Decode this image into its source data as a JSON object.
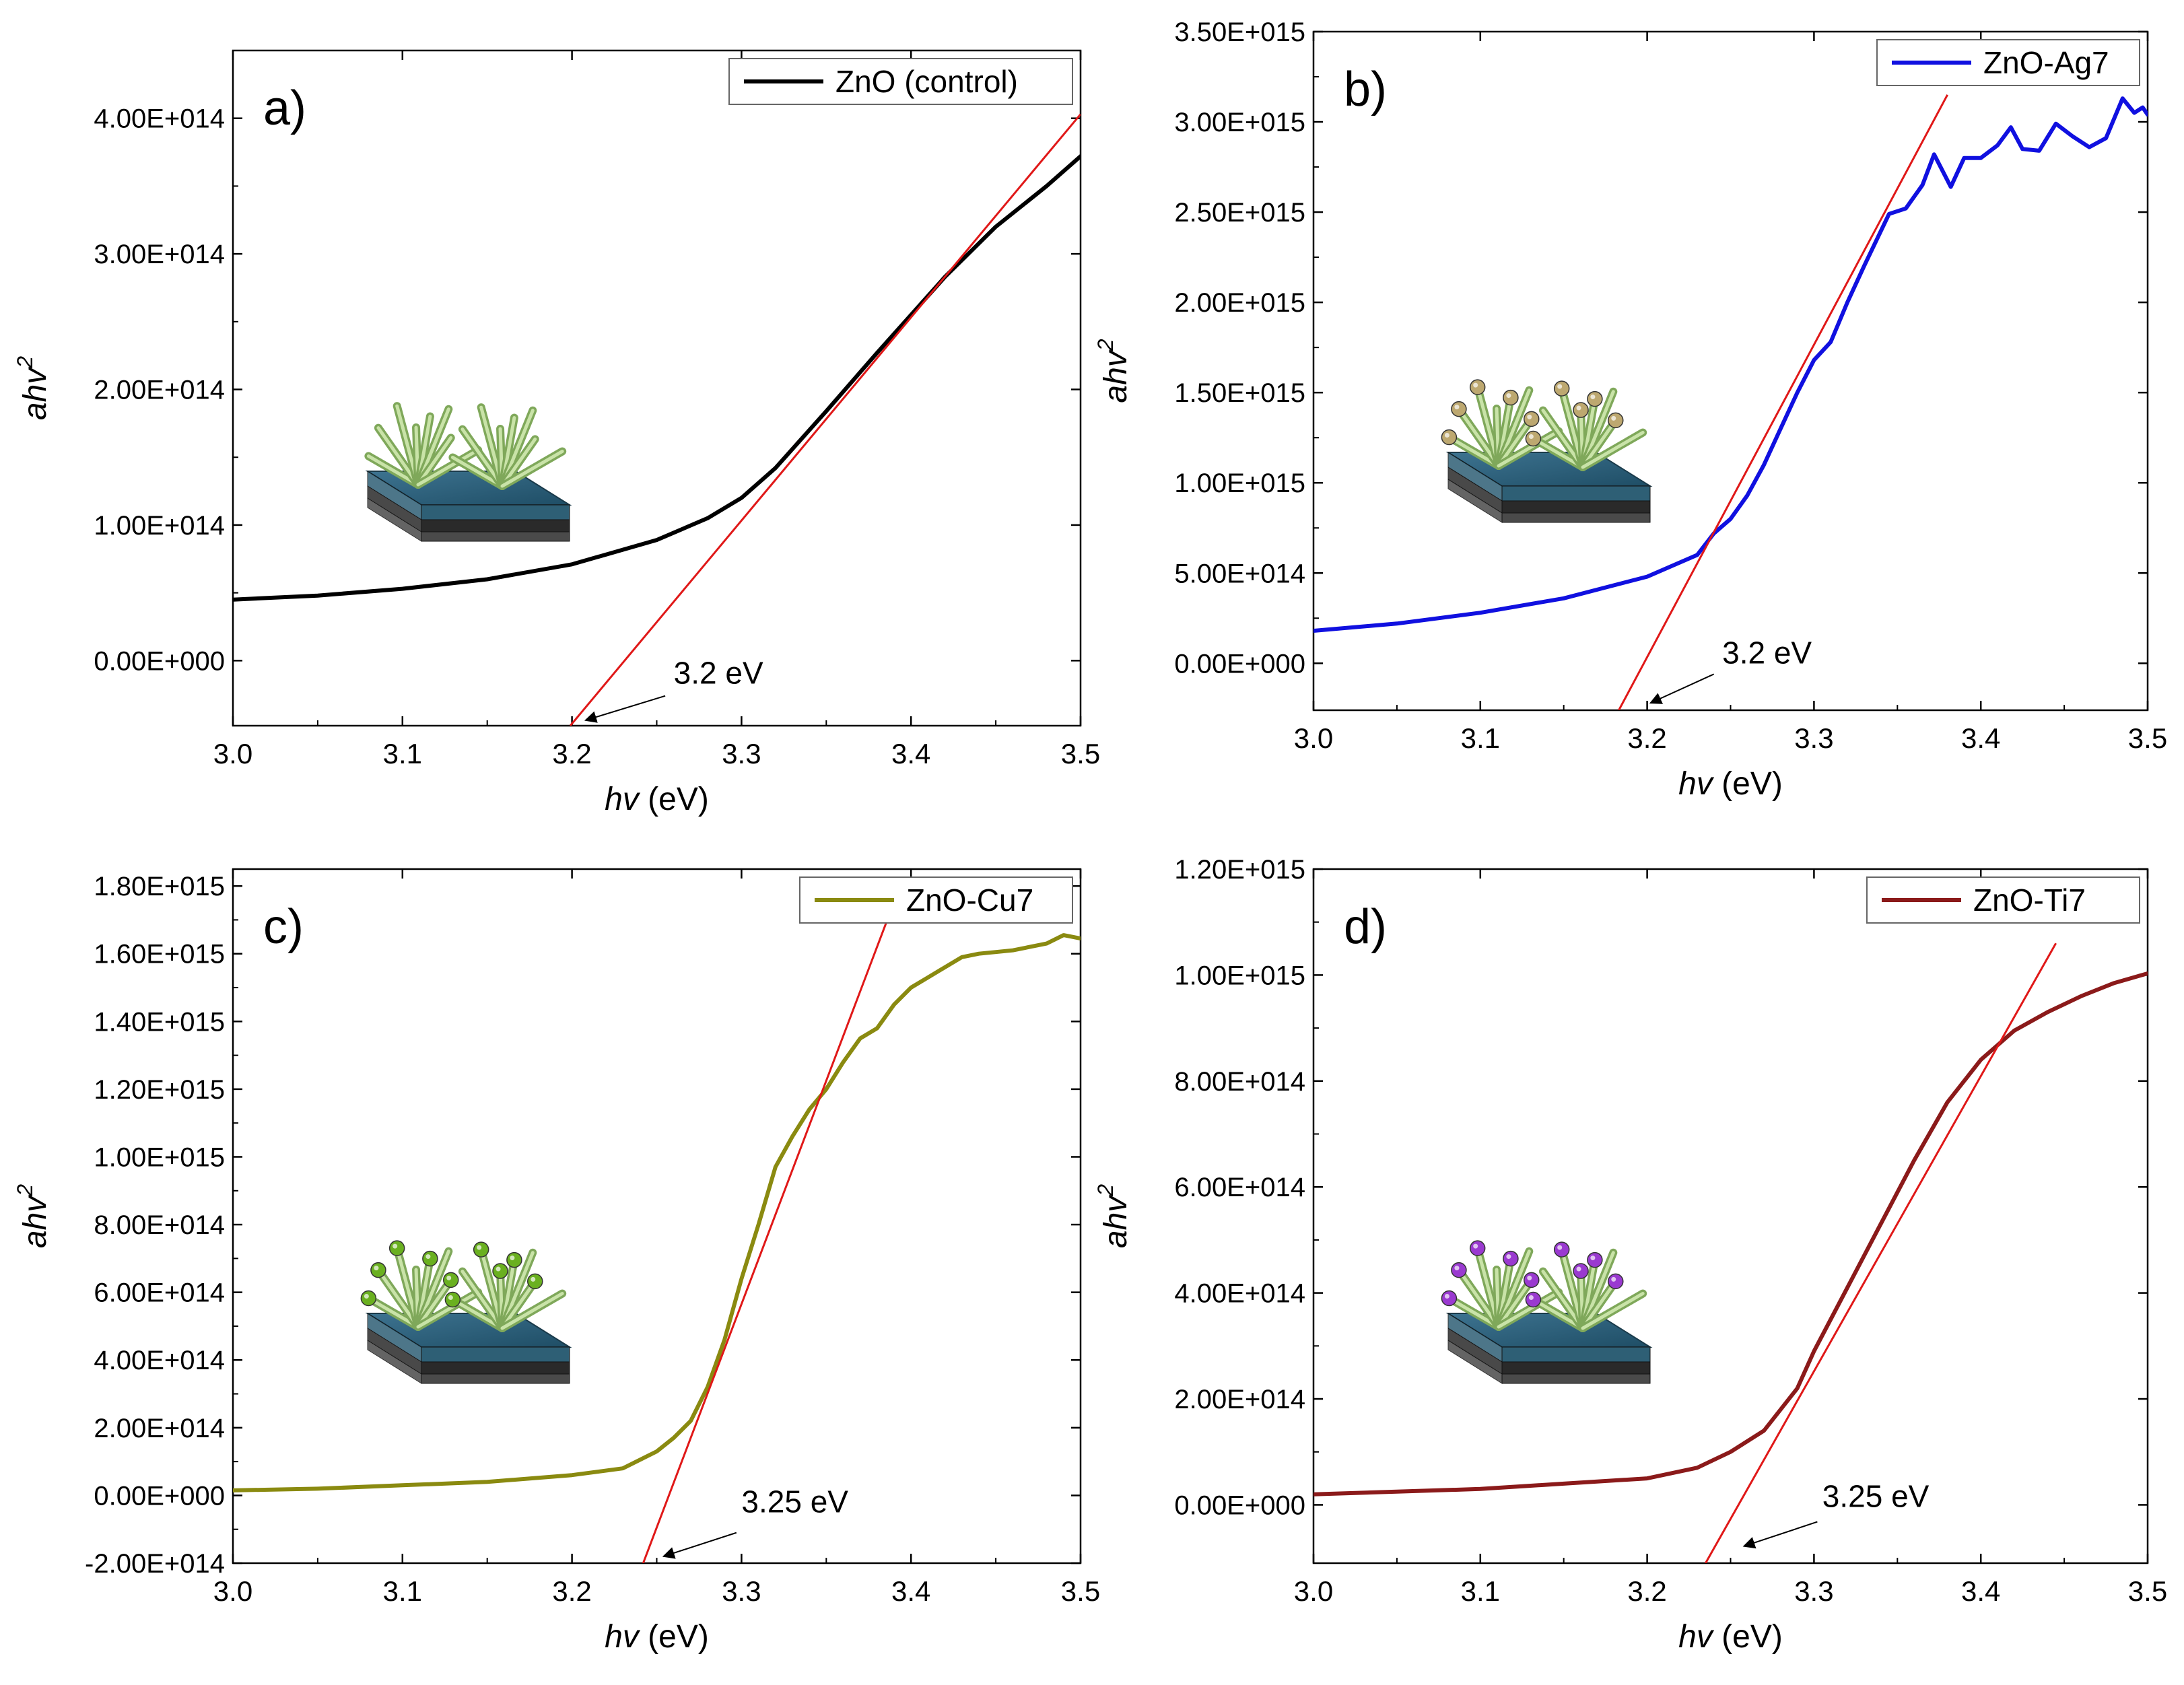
{
  "figure": {
    "description": "Tauc plots of ZnO variants"
  },
  "chart_data": [
    {
      "type": "line",
      "panel_label": "a)",
      "legend": "ZnO (control)",
      "color": "#000000",
      "xlabel_italic": "hv",
      "xlabel_unit": " (eV)",
      "ylabel_base": "ahv",
      "ylabel_sup": "2",
      "xlim": [
        3.0,
        3.5
      ],
      "ylim": [
        -48000000000000.0,
        450000000000000.0
      ],
      "xticks": [
        3.0,
        3.1,
        3.2,
        3.3,
        3.4,
        3.5
      ],
      "xtick_labels": [
        "3.0",
        "3.1",
        "3.2",
        "3.3",
        "3.4",
        "3.5"
      ],
      "yticks": [
        0,
        100000000000000.0,
        200000000000000.0,
        300000000000000.0,
        400000000000000.0
      ],
      "ytick_labels": [
        "0.00E+000",
        "1.00E+014",
        "2.00E+014",
        "3.00E+014",
        "4.00E+014"
      ],
      "x": [
        3.0,
        3.05,
        3.1,
        3.15,
        3.2,
        3.25,
        3.28,
        3.3,
        3.32,
        3.35,
        3.38,
        3.4,
        3.42,
        3.45,
        3.48,
        3.5
      ],
      "y": [
        45000000000000.0,
        48000000000000.0,
        53000000000000.0,
        60000000000000.0,
        71000000000000.0,
        89000000000000.0,
        105000000000000.0,
        120000000000000.0,
        142000000000000.0,
        184000000000000.0,
        227000000000000.0,
        255000000000000.0,
        283000000000000.0,
        320000000000000.0,
        350000000000000.0,
        372000000000000.0
      ],
      "fit": [
        [
          3.199,
          -48000000000000.0
        ],
        [
          3.5,
          403000000000000.0
        ]
      ],
      "bandgap_label": "3.2 eV",
      "bandgap_value": 3.2,
      "annotation_pos": [
        3.26,
        -17000000000000.0
      ],
      "arrow_from": [
        3.255,
        -26000000000000.0
      ],
      "arrow_to": [
        3.208,
        -44000000000000.0
      ],
      "inset_particles": ""
    },
    {
      "type": "line",
      "panel_label": "b)",
      "legend": "ZnO-Ag7",
      "color": "#1010e0",
      "xlabel_italic": "hv",
      "xlabel_unit": " (eV)",
      "ylabel_base": "ahv",
      "ylabel_sup": "2",
      "xlim": [
        3.0,
        3.5
      ],
      "ylim": [
        -260000000000000.0,
        3500000000000000.0
      ],
      "xticks": [
        3.0,
        3.1,
        3.2,
        3.3,
        3.4,
        3.5
      ],
      "xtick_labels": [
        "3.0",
        "3.1",
        "3.2",
        "3.3",
        "3.4",
        "3.5"
      ],
      "yticks": [
        0,
        500000000000000.0,
        1000000000000000.0,
        1500000000000000.0,
        2000000000000000.0,
        2500000000000000.0,
        3000000000000000.0,
        3500000000000000.0
      ],
      "ytick_labels": [
        "0.00E+000",
        "5.00E+014",
        "1.00E+015",
        "1.50E+015",
        "2.00E+015",
        "2.50E+015",
        "3.00E+015",
        "3.50E+015"
      ],
      "x": [
        3.0,
        3.05,
        3.1,
        3.15,
        3.2,
        3.23,
        3.24,
        3.25,
        3.26,
        3.27,
        3.28,
        3.29,
        3.3,
        3.31,
        3.32,
        3.33,
        3.345,
        3.355,
        3.365,
        3.372,
        3.382,
        3.39,
        3.4,
        3.41,
        3.418,
        3.425,
        3.435,
        3.445,
        3.455,
        3.465,
        3.475,
        3.485,
        3.492,
        3.497,
        3.5
      ],
      "y": [
        180000000000000.0,
        220000000000000.0,
        280000000000000.0,
        360000000000000.0,
        480000000000000.0,
        600000000000000.0,
        720000000000000.0,
        800000000000000.0,
        930000000000000.0,
        1100000000000000.0,
        1300000000000000.0,
        1500000000000000.0,
        1680000000000000.0,
        1780000000000000.0,
        2000000000000000.0,
        2200000000000000.0,
        2490000000000000.0,
        2520000000000000.0,
        2650000000000000.0,
        2820000000000000.0,
        2640000000000000.0,
        2800000000000000.0,
        2800000000000000.0,
        2870000000000000.0,
        2970000000000000.0,
        2850000000000000.0,
        2840000000000000.0,
        2990000000000000.0,
        2920000000000000.0,
        2860000000000000.0,
        2910000000000000.0,
        3130000000000000.0,
        3050000000000000.0,
        3080000000000000.0,
        3040000000000000.0
      ],
      "fit": [
        [
          3.183,
          -260000000000000.0
        ],
        [
          3.38,
          3150000000000000.0
        ]
      ],
      "bandgap_label": "3.2 eV",
      "bandgap_value": 3.2,
      "annotation_pos": [
        3.245,
        0.0
      ],
      "arrow_from": [
        3.24,
        -60000000000000.0
      ],
      "arrow_to": [
        3.202,
        -220000000000000.0
      ],
      "inset_particles": "#bda870"
    },
    {
      "type": "line",
      "panel_label": "c)",
      "legend": "ZnO-Cu7",
      "color": "#8a8a10",
      "xlabel_italic": "hv",
      "xlabel_unit": " (eV)",
      "ylabel_base": "ahv",
      "ylabel_sup": "2",
      "xlim": [
        3.0,
        3.5
      ],
      "ylim": [
        -200000000000000.0,
        1850000000000000.0
      ],
      "xticks": [
        3.0,
        3.1,
        3.2,
        3.3,
        3.4,
        3.5
      ],
      "xtick_labels": [
        "3.0",
        "3.1",
        "3.2",
        "3.3",
        "3.4",
        "3.5"
      ],
      "yticks": [
        -200000000000000.0,
        0,
        200000000000000.0,
        400000000000000.0,
        600000000000000.0,
        800000000000000.0,
        1000000000000000.0,
        1200000000000000.0,
        1400000000000000.0,
        1600000000000000.0,
        1800000000000000.0
      ],
      "ytick_labels": [
        "-2.00E+014",
        "0.00E+000",
        "2.00E+014",
        "4.00E+014",
        "6.00E+014",
        "8.00E+014",
        "1.00E+015",
        "1.20E+015",
        "1.40E+015",
        "1.60E+015",
        "1.80E+015"
      ],
      "x": [
        3.0,
        3.05,
        3.1,
        3.15,
        3.2,
        3.23,
        3.25,
        3.26,
        3.27,
        3.28,
        3.29,
        3.3,
        3.31,
        3.32,
        3.33,
        3.34,
        3.35,
        3.36,
        3.37,
        3.38,
        3.39,
        3.4,
        3.41,
        3.42,
        3.43,
        3.44,
        3.46,
        3.48,
        3.49,
        3.5
      ],
      "y": [
        15000000000000.0,
        20000000000000.0,
        30000000000000.0,
        40000000000000.0,
        60000000000000.0,
        80000000000000.0,
        130000000000000.0,
        170000000000000.0,
        220000000000000.0,
        320000000000000.0,
        460000000000000.0,
        640000000000000.0,
        800000000000000.0,
        970000000000000.0,
        1060000000000000.0,
        1140000000000000.0,
        1200000000000000.0,
        1280000000000000.0,
        1350000000000000.0,
        1380000000000000.0,
        1450000000000000.0,
        1500000000000000.0,
        1530000000000000.0,
        1560000000000000.0,
        1590000000000000.0,
        1600000000000000.0,
        1610000000000000.0,
        1630000000000000.0,
        1655000000000000.0,
        1645000000000000.0
      ],
      "fit": [
        [
          3.242,
          -200000000000000.0
        ],
        [
          3.386,
          1700000000000000.0
        ]
      ],
      "bandgap_label": "3.25 eV",
      "bandgap_value": 3.25,
      "annotation_pos": [
        3.3,
        -50000000000000.0
      ],
      "arrow_from": [
        3.297,
        -110000000000000.0
      ],
      "arrow_to": [
        3.254,
        -180000000000000.0
      ],
      "inset_particles": "#6ab020"
    },
    {
      "type": "line",
      "panel_label": "d)",
      "legend": "ZnO-Ti7",
      "color": "#8b1a1a",
      "xlabel_italic": "hv",
      "xlabel_unit": " (eV)",
      "ylabel_base": "ahv",
      "ylabel_sup": "2",
      "xlim": [
        3.0,
        3.5
      ],
      "ylim": [
        -110000000000000.0,
        1200000000000000.0
      ],
      "xticks": [
        3.0,
        3.1,
        3.2,
        3.3,
        3.4,
        3.5
      ],
      "xtick_labels": [
        "3.0",
        "3.1",
        "3.2",
        "3.3",
        "3.4",
        "3.5"
      ],
      "yticks": [
        0,
        200000000000000.0,
        400000000000000.0,
        600000000000000.0,
        800000000000000.0,
        1000000000000000.0,
        1200000000000000.0
      ],
      "ytick_labels": [
        "0.00E+000",
        "2.00E+014",
        "4.00E+014",
        "6.00E+014",
        "8.00E+014",
        "1.00E+015",
        "1.20E+015"
      ],
      "x": [
        3.0,
        3.05,
        3.1,
        3.15,
        3.2,
        3.23,
        3.25,
        3.27,
        3.29,
        3.3,
        3.32,
        3.34,
        3.36,
        3.38,
        3.4,
        3.42,
        3.44,
        3.46,
        3.48,
        3.5
      ],
      "y": [
        20000000000000.0,
        25000000000000.0,
        30000000000000.0,
        40000000000000.0,
        50000000000000.0,
        70000000000000.0,
        100000000000000.0,
        140000000000000.0,
        220000000000000.0,
        290000000000000.0,
        410000000000000.0,
        530000000000000.0,
        650000000000000.0,
        760000000000000.0,
        840000000000000.0,
        895000000000000.0,
        930000000000000.0,
        960000000000000.0,
        985000000000000.0,
        1003000000000000.0
      ],
      "fit": [
        [
          3.235,
          -110000000000000.0
        ],
        [
          3.445,
          1060000000000000.0
        ]
      ],
      "bandgap_label": "3.25 eV",
      "bandgap_value": 3.25,
      "annotation_pos": [
        3.305,
        -4000000000000.0
      ],
      "arrow_from": [
        3.302,
        -32000000000000.0
      ],
      "arrow_to": [
        3.258,
        -78000000000000.0
      ],
      "inset_particles": "#9a3ad0"
    }
  ]
}
